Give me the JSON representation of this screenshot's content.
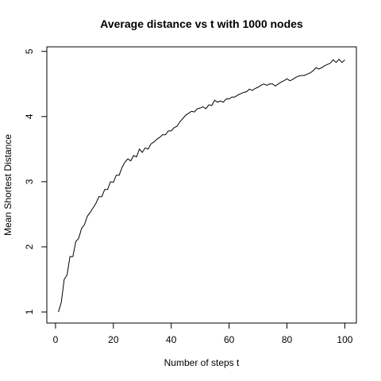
{
  "chart_data": {
    "type": "line",
    "title": "Average distance vs t with 1000 nodes",
    "xlabel": "Number of steps t",
    "ylabel": "Mean Shortest Distance",
    "xlim": [
      -3,
      104
    ],
    "ylim": [
      0.83,
      5.07
    ],
    "xticks": [
      0,
      20,
      40,
      60,
      80,
      100
    ],
    "yticks": [
      1,
      2,
      3,
      4,
      5
    ],
    "grid": false,
    "legend": "none",
    "series": [
      {
        "color": "#000000",
        "x": [
          1,
          2,
          3,
          4,
          5,
          6,
          7,
          8,
          9,
          10,
          11,
          12,
          13,
          14,
          15,
          16,
          17,
          18,
          19,
          20,
          21,
          22,
          23,
          24,
          25,
          26,
          27,
          28,
          29,
          30,
          31,
          32,
          33,
          34,
          35,
          36,
          37,
          38,
          39,
          40,
          41,
          42,
          43,
          44,
          45,
          46,
          47,
          48,
          49,
          50,
          51,
          52,
          53,
          54,
          55,
          56,
          57,
          58,
          59,
          60,
          61,
          62,
          63,
          64,
          65,
          66,
          67,
          68,
          69,
          70,
          71,
          72,
          73,
          74,
          75,
          76,
          77,
          78,
          79,
          80,
          81,
          82,
          83,
          84,
          85,
          86,
          87,
          88,
          89,
          90,
          91,
          92,
          93,
          94,
          95,
          96,
          97,
          98,
          99,
          100
        ],
        "y": [
          1.0,
          1.15,
          1.5,
          1.57,
          1.85,
          1.85,
          2.08,
          2.13,
          2.28,
          2.34,
          2.47,
          2.53,
          2.6,
          2.67,
          2.77,
          2.77,
          2.88,
          2.88,
          3.0,
          2.99,
          3.1,
          3.1,
          3.22,
          3.3,
          3.35,
          3.32,
          3.4,
          3.38,
          3.5,
          3.45,
          3.52,
          3.5,
          3.58,
          3.61,
          3.65,
          3.68,
          3.72,
          3.72,
          3.78,
          3.78,
          3.83,
          3.85,
          3.92,
          3.97,
          4.02,
          4.05,
          4.08,
          4.07,
          4.12,
          4.13,
          4.15,
          4.12,
          4.18,
          4.17,
          4.25,
          4.22,
          4.24,
          4.22,
          4.27,
          4.27,
          4.3,
          4.3,
          4.33,
          4.35,
          4.37,
          4.38,
          4.42,
          4.4,
          4.43,
          4.45,
          4.48,
          4.5,
          4.48,
          4.5,
          4.5,
          4.47,
          4.5,
          4.53,
          4.55,
          4.58,
          4.55,
          4.57,
          4.6,
          4.62,
          4.63,
          4.63,
          4.65,
          4.67,
          4.7,
          4.75,
          4.73,
          4.75,
          4.78,
          4.8,
          4.82,
          4.87,
          4.83,
          4.88,
          4.83,
          4.87
        ]
      }
    ]
  }
}
